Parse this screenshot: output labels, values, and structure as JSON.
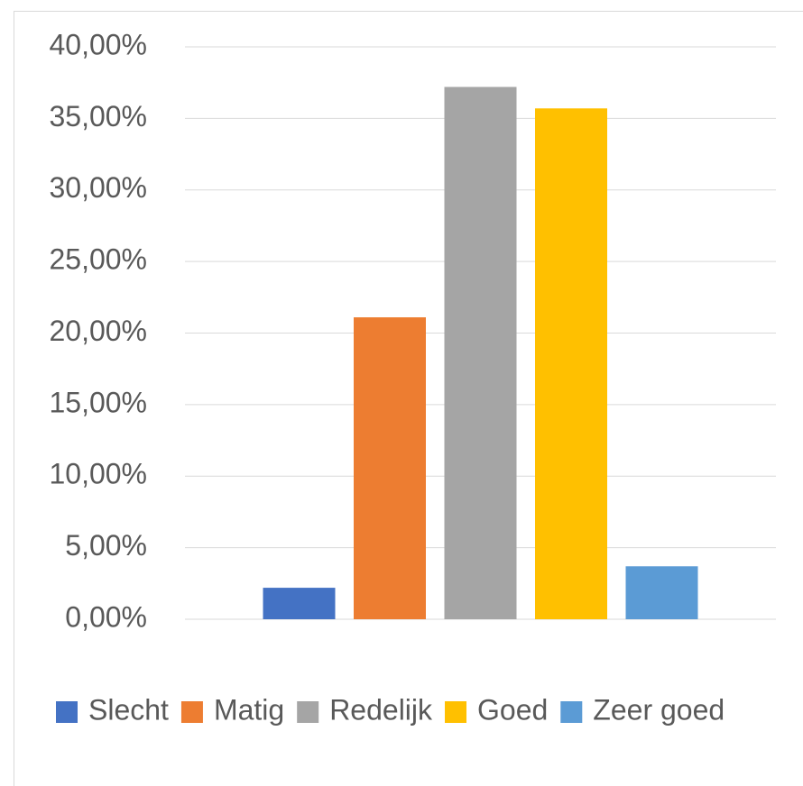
{
  "chart_data": {
    "type": "bar",
    "categories": [
      null
    ],
    "series": [
      {
        "name": "Slecht",
        "color": "#4472c4",
        "values": [
          2.2
        ]
      },
      {
        "name": "Matig",
        "color": "#ed7d31",
        "values": [
          21.1
        ]
      },
      {
        "name": "Redelijk",
        "color": "#a5a5a5",
        "values": [
          37.2
        ]
      },
      {
        "name": "Goed",
        "color": "#ffc000",
        "values": [
          35.7
        ]
      },
      {
        "name": "Zeer goed",
        "color": "#5b9bd5",
        "values": [
          3.7
        ]
      }
    ],
    "ylim": [
      0,
      40
    ],
    "yticks": [
      {
        "value": 0,
        "label": "0,00%"
      },
      {
        "value": 5,
        "label": "5,00%"
      },
      {
        "value": 10,
        "label": "10,00%"
      },
      {
        "value": 15,
        "label": "15,00%"
      },
      {
        "value": 20,
        "label": "20,00%"
      },
      {
        "value": 25,
        "label": "25,00%"
      },
      {
        "value": 30,
        "label": "30,00%"
      },
      {
        "value": 35,
        "label": "35,00%"
      },
      {
        "value": 40,
        "label": "40,00%"
      }
    ],
    "grid": true,
    "legend": "bottom"
  }
}
